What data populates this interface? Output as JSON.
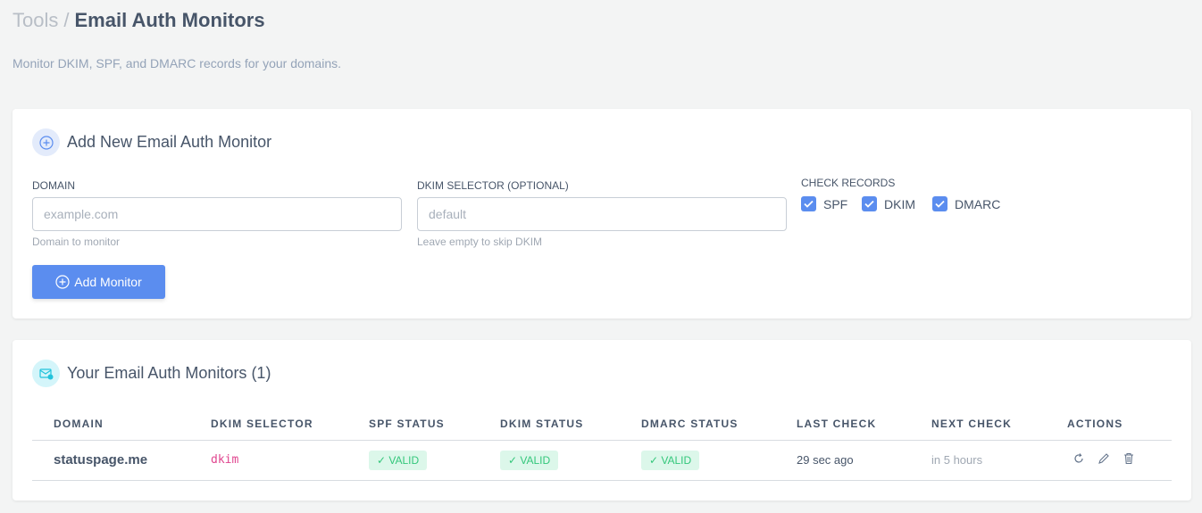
{
  "breadcrumb": {
    "parent": "Tools",
    "separator": "/",
    "current": "Email Auth Monitors"
  },
  "subtitle": "Monitor DKIM, SPF, and DMARC records for your domains.",
  "add_form": {
    "title": "Add New Email Auth Monitor",
    "domain": {
      "label": "DOMAIN",
      "placeholder": "example.com",
      "value": "",
      "help": "Domain to monitor"
    },
    "dkim_selector": {
      "label": "DKIM SELECTOR (OPTIONAL)",
      "placeholder": "default",
      "value": "",
      "help": "Leave empty to skip DKIM"
    },
    "check_records": {
      "label": "CHECK RECORDS",
      "options": [
        {
          "label": "SPF",
          "checked": true
        },
        {
          "label": "DKIM",
          "checked": true
        },
        {
          "label": "DMARC",
          "checked": true
        }
      ]
    },
    "submit_label": "Add Monitor"
  },
  "monitors": {
    "title": "Your Email Auth Monitors (1)",
    "columns": [
      "DOMAIN",
      "DKIM SELECTOR",
      "SPF STATUS",
      "DKIM STATUS",
      "DMARC STATUS",
      "LAST CHECK",
      "NEXT CHECK",
      "ACTIONS"
    ],
    "rows": [
      {
        "domain": "statuspage.me",
        "dkim_selector": "dkim",
        "spf_status": "✓ VALID",
        "dkim_status": "✓ VALID",
        "dmarc_status": "✓ VALID",
        "last_check": "29 sec ago",
        "next_check": "in 5 hours",
        "actions": [
          "refresh-icon",
          "edit-icon",
          "trash-icon"
        ]
      }
    ]
  },
  "colors": {
    "accent": "#5b8def",
    "valid_bg": "#dcf7ea",
    "valid_text": "#34c77b",
    "selector": "#e0468f"
  }
}
